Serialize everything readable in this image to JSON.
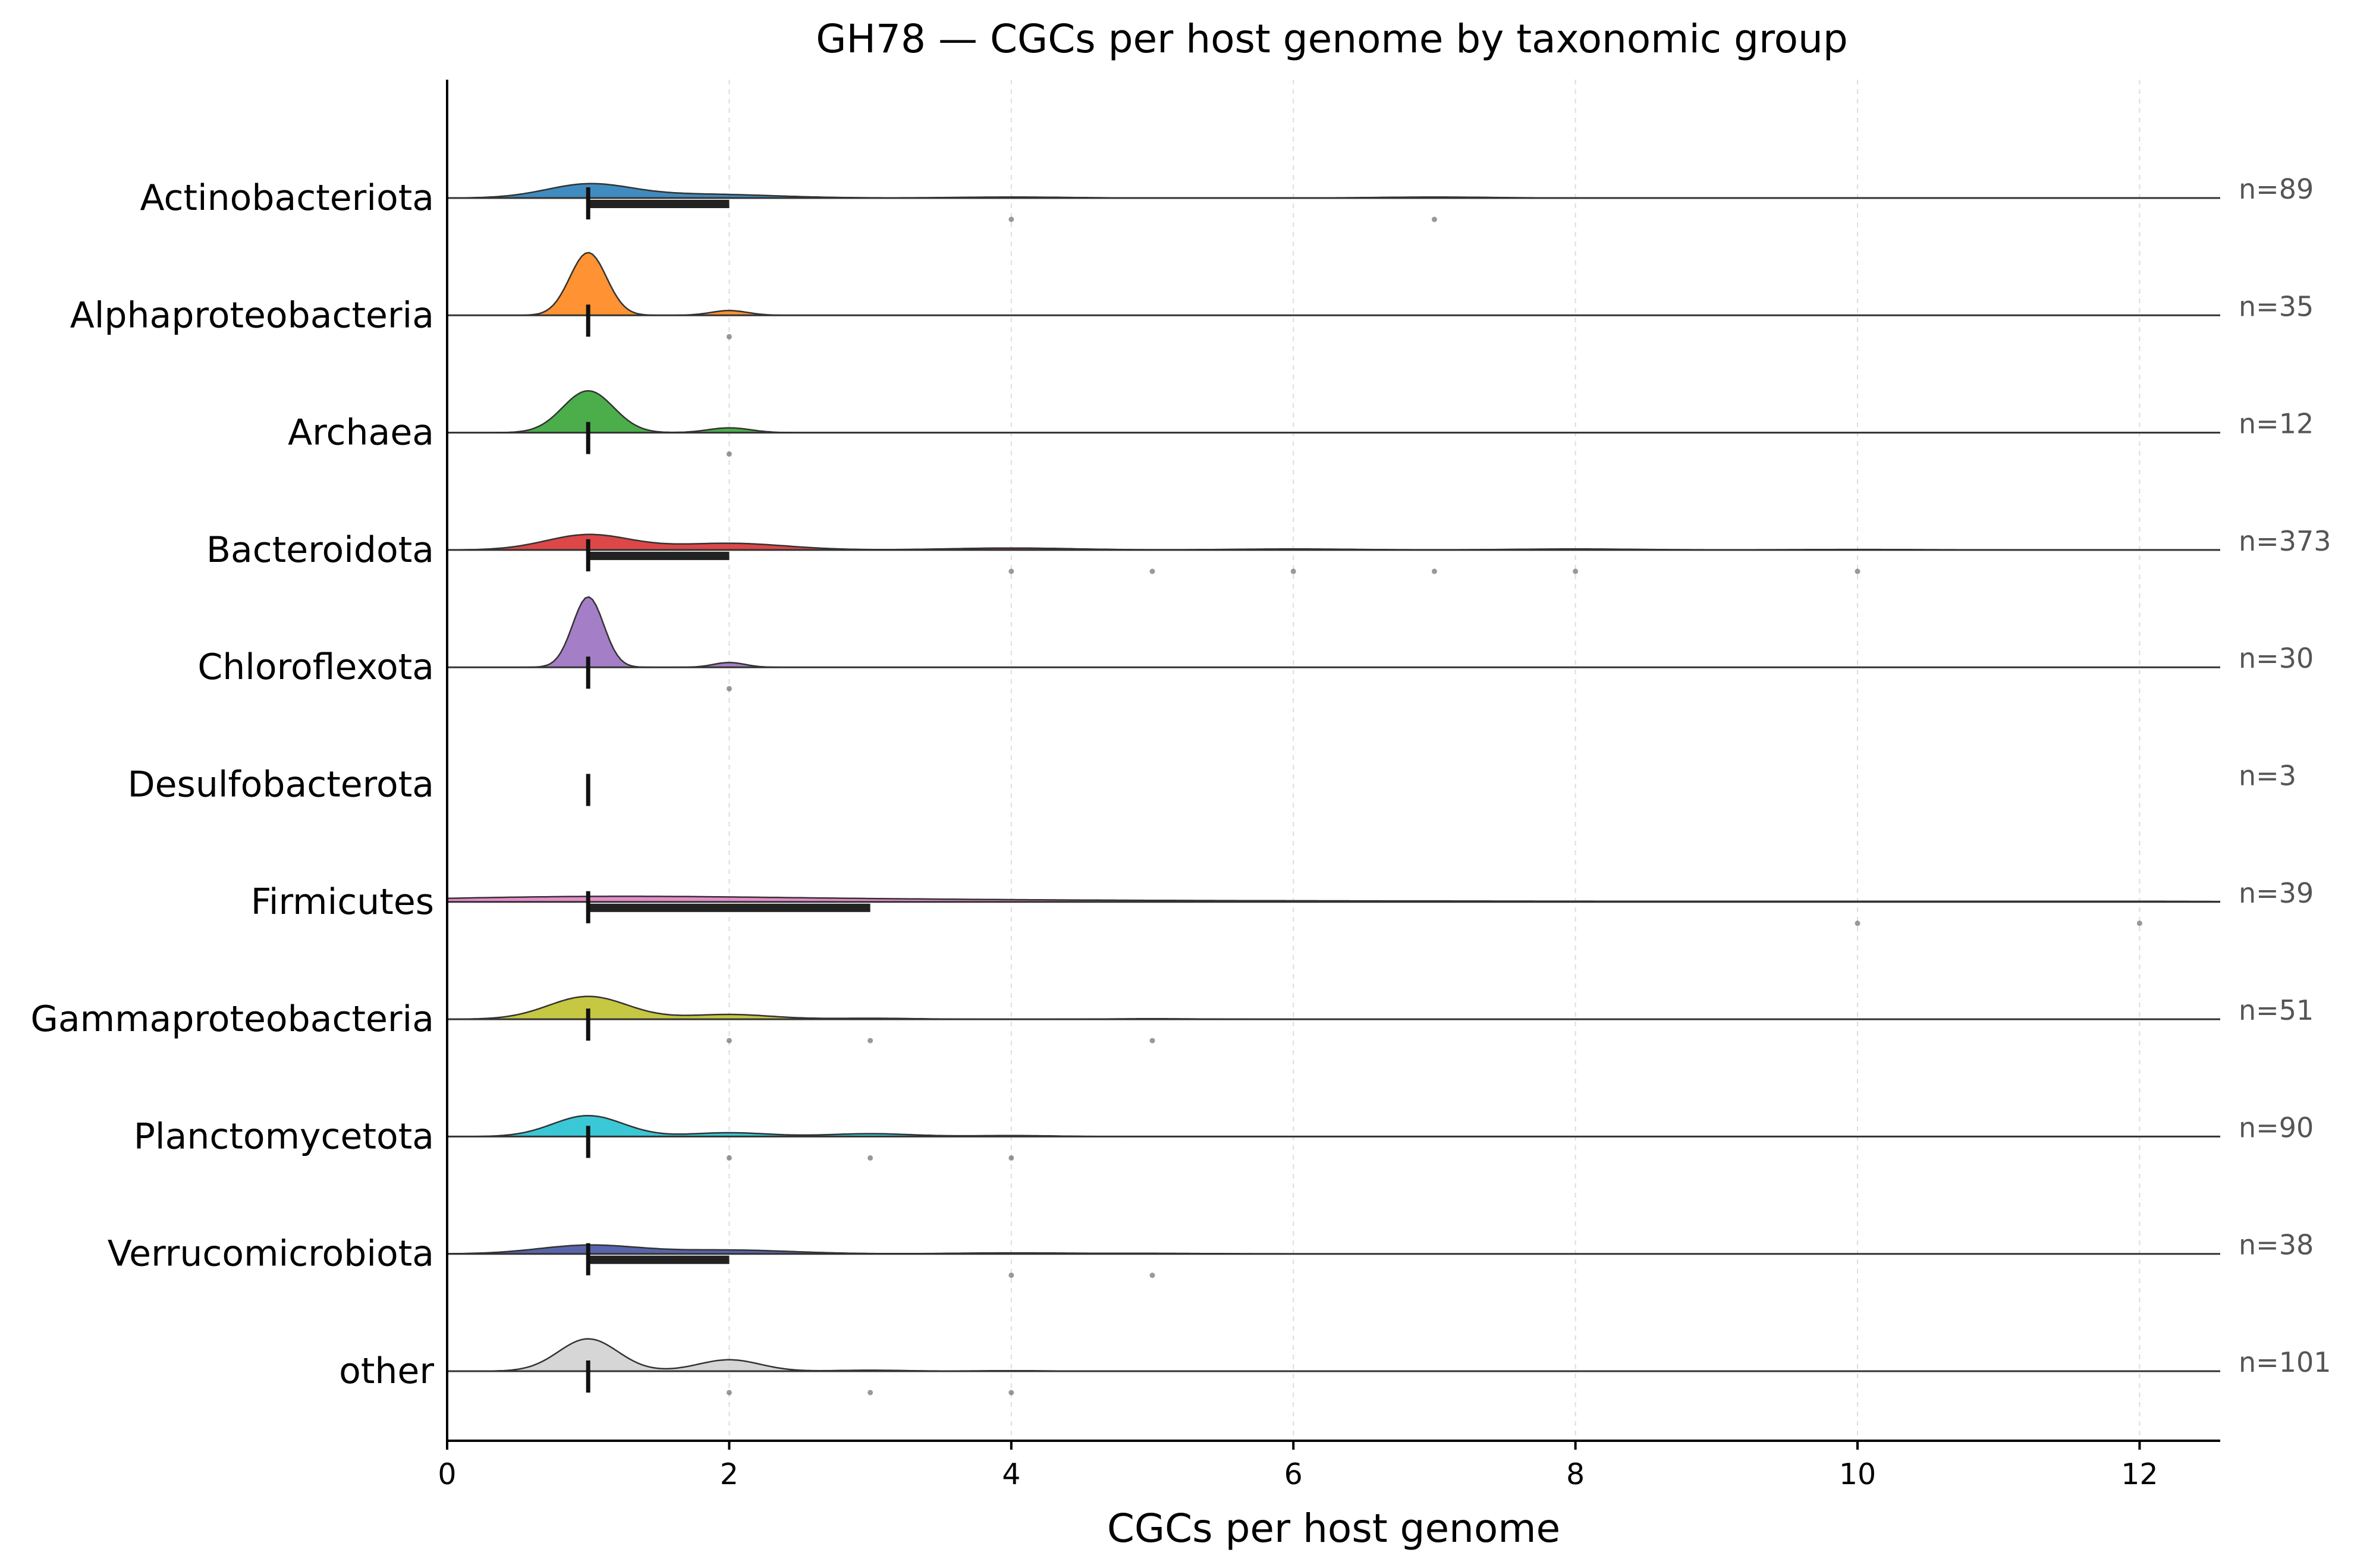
{
  "chart_data": {
    "type": "ridgeline",
    "title": "GH78 — CGCs per host genome by taxonomic group",
    "xlabel": "CGCs per host genome",
    "ylabel": "",
    "xlim": [
      0,
      12.6
    ],
    "xticks": [
      0,
      2,
      4,
      6,
      8,
      10,
      12
    ],
    "grid": "vertical dashed",
    "series": [
      {
        "name": "Actinobacteriota",
        "n_label": "n=89",
        "color": "#1f77b4",
        "median": 1,
        "iqr": [
          1,
          2
        ],
        "modes": [
          [
            1,
            0.14,
            0.3
          ],
          [
            1.8,
            0.04,
            0.5
          ],
          [
            4,
            0.01,
            0.4
          ],
          [
            7,
            0.01,
            0.4
          ]
        ],
        "outliers": [
          4,
          7
        ]
      },
      {
        "name": "Alphaproteobacteria",
        "n_label": "n=35",
        "color": "#ff7f0e",
        "median": 1,
        "iqr": [
          1,
          1
        ],
        "modes": [
          [
            1,
            0.66,
            0.13
          ],
          [
            2,
            0.05,
            0.13
          ]
        ],
        "outliers": [
          2
        ]
      },
      {
        "name": "Archaea",
        "n_label": "n=12",
        "color": "#2ca02c",
        "median": 1,
        "iqr": [
          1,
          1
        ],
        "modes": [
          [
            1,
            0.44,
            0.18
          ],
          [
            2,
            0.05,
            0.15
          ]
        ],
        "outliers": [
          2
        ]
      },
      {
        "name": "Bacteroidota",
        "n_label": "n=373",
        "color": "#d62728",
        "median": 1,
        "iqr": [
          1,
          2
        ],
        "modes": [
          [
            1,
            0.16,
            0.3
          ],
          [
            2,
            0.07,
            0.4
          ],
          [
            4,
            0.02,
            0.45
          ],
          [
            6,
            0.01,
            0.45
          ],
          [
            8,
            0.01,
            0.45
          ],
          [
            10,
            0.005,
            0.45
          ]
        ],
        "outliers": [
          4,
          5,
          6,
          7,
          8,
          10
        ]
      },
      {
        "name": "Chloroflexota",
        "n_label": "n=30",
        "color": "#9467bd",
        "median": 1,
        "iqr": [
          1,
          1
        ],
        "modes": [
          [
            1,
            0.74,
            0.11
          ],
          [
            2,
            0.05,
            0.11
          ]
        ],
        "outliers": [
          2
        ]
      },
      {
        "name": "Desulfobacterota",
        "n_label": "n=3",
        "color": "#8c564b",
        "median": 1,
        "iqr": [
          1,
          1
        ],
        "modes": [],
        "outliers": []
      },
      {
        "name": "Firmicutes",
        "n_label": "n=39",
        "color": "#e377c2",
        "median": 1,
        "iqr": [
          1,
          3
        ],
        "modes": [
          [
            1,
            0.05,
            1.2
          ],
          [
            3,
            0.02,
            1.4
          ],
          [
            6,
            0.01,
            2.0
          ],
          [
            10,
            0.005,
            1.2
          ],
          [
            12,
            0.005,
            0.8
          ]
        ],
        "outliers": [
          10,
          12
        ]
      },
      {
        "name": "Gammaproteobacteria",
        "n_label": "n=51",
        "color": "#bcbd22",
        "median": 1,
        "iqr": [
          1,
          1
        ],
        "modes": [
          [
            1,
            0.24,
            0.28
          ],
          [
            2,
            0.05,
            0.3
          ],
          [
            3,
            0.01,
            0.3
          ],
          [
            5,
            0.005,
            0.3
          ]
        ],
        "outliers": [
          2,
          3,
          5
        ]
      },
      {
        "name": "Planctomycetota",
        "n_label": "n=90",
        "color": "#17becf",
        "median": 1,
        "iqr": [
          1,
          1
        ],
        "modes": [
          [
            1,
            0.22,
            0.25
          ],
          [
            2,
            0.04,
            0.28
          ],
          [
            3,
            0.03,
            0.3
          ],
          [
            4,
            0.01,
            0.3
          ]
        ],
        "outliers": [
          2,
          3,
          4
        ]
      },
      {
        "name": "Verrucomicrobiota",
        "n_label": "n=38",
        "color": "#3b4a9e",
        "median": 1,
        "iqr": [
          1,
          2
        ],
        "modes": [
          [
            1,
            0.09,
            0.35
          ],
          [
            2,
            0.04,
            0.45
          ],
          [
            4,
            0.01,
            0.4
          ],
          [
            5,
            0.005,
            0.4
          ]
        ],
        "outliers": [
          4,
          5
        ]
      },
      {
        "name": "other",
        "n_label": "n=101",
        "color": "#cfcfcf",
        "median": 1,
        "iqr": [
          1,
          1
        ],
        "modes": [
          [
            1,
            0.34,
            0.21
          ],
          [
            2,
            0.12,
            0.22
          ],
          [
            3,
            0.01,
            0.25
          ],
          [
            4,
            0.005,
            0.25
          ]
        ],
        "outliers": [
          2,
          3,
          4
        ]
      }
    ]
  }
}
